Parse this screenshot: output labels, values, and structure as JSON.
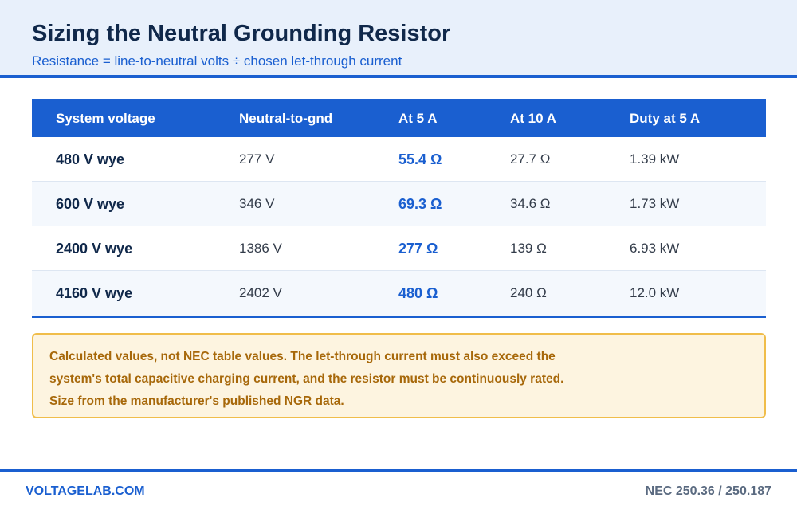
{
  "header": {
    "title": "Sizing the Neutral Grounding Resistor",
    "subtitle": "Resistance = line-to-neutral volts ÷ chosen let-through current"
  },
  "table": {
    "columns": [
      "System voltage",
      "Neutral-to-gnd",
      "At 5 A",
      "At 10 A",
      "Duty at 5 A"
    ],
    "rows": [
      {
        "system": "480 V wye",
        "neutral": "277 V",
        "at5": "55.4 Ω",
        "at10": "27.7 Ω",
        "duty": "1.39 kW"
      },
      {
        "system": "600 V wye",
        "neutral": "346 V",
        "at5": "69.3 Ω",
        "at10": "34.6 Ω",
        "duty": "1.73 kW"
      },
      {
        "system": "2400 V wye",
        "neutral": "1386 V",
        "at5": "277 Ω",
        "at10": "139 Ω",
        "duty": "6.93 kW"
      },
      {
        "system": "4160 V wye",
        "neutral": "2402 V",
        "at5": "480 Ω",
        "at10": "240 Ω",
        "duty": "12.0 kW"
      }
    ]
  },
  "note": {
    "text": "Calculated values, not NEC table values. The let-through current must also exceed the system's total capacitive charging current, and the resistor must be continuously rated. Size from the manufacturer's published NGR data."
  },
  "footer": {
    "brand": "VOLTAGELAB.COM",
    "reference": "NEC 250.36 / 250.187"
  },
  "colors": {
    "accent": "#1a5fd0",
    "header_bg": "#e8f0fb",
    "note_bg": "#fdf4e0",
    "note_border": "#f0bd4a",
    "note_text": "#a7680a"
  }
}
